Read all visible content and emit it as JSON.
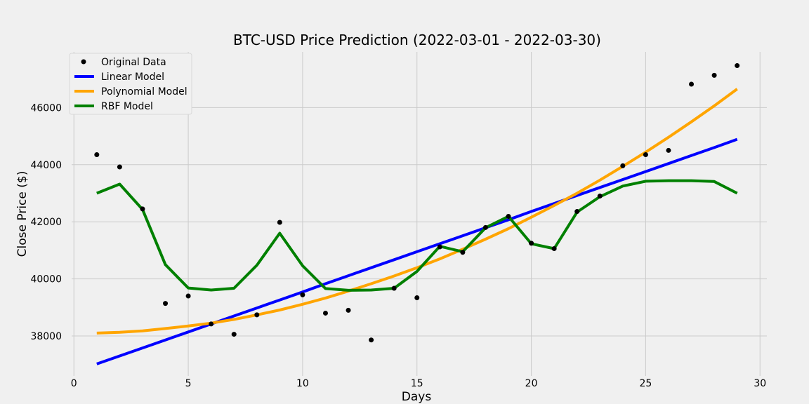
{
  "chart_data": {
    "type": "line",
    "title": "BTC-USD Price Prediction (2022-03-01 - 2022-03-30)",
    "xlabel": "Days",
    "ylabel": "Close Price ($)",
    "xlim": [
      -0.1,
      30.3
    ],
    "ylim": [
      36600,
      47950
    ],
    "xticks": [
      0,
      5,
      10,
      15,
      20,
      25,
      30
    ],
    "yticks": [
      38000,
      40000,
      42000,
      44000,
      46000
    ],
    "grid": true,
    "legend_position": "top-left",
    "x": [
      1,
      2,
      3,
      4,
      5,
      6,
      7,
      8,
      9,
      10,
      11,
      12,
      13,
      14,
      15,
      16,
      17,
      18,
      19,
      20,
      21,
      22,
      23,
      24,
      25,
      26,
      27,
      28,
      29
    ],
    "scatter": {
      "name": "Original Data",
      "color": "#000000",
      "values": [
        44350,
        43920,
        42450,
        39140,
        39400,
        38420,
        38060,
        38740,
        41980,
        39440,
        38800,
        38900,
        37860,
        39670,
        39340,
        41120,
        40930,
        41800,
        42190,
        41250,
        41060,
        42360,
        42900,
        43960,
        44350,
        44500,
        46820,
        47130,
        47470
      ]
    },
    "series": [
      {
        "name": "Linear Model",
        "color": "#0000ff",
        "values": [
          37020,
          37300,
          37580,
          37860,
          38140,
          38420,
          38700,
          38980,
          39260,
          39540,
          39830,
          40110,
          40390,
          40670,
          40950,
          41230,
          41510,
          41790,
          42070,
          42360,
          42640,
          42920,
          43200,
          43480,
          43760,
          44040,
          44320,
          44600,
          44890
        ]
      },
      {
        "name": "Polynomial Model",
        "color": "#ffa500",
        "values": [
          38100,
          38130,
          38180,
          38260,
          38350,
          38450,
          38580,
          38740,
          38910,
          39110,
          39330,
          39570,
          39830,
          40100,
          40390,
          40700,
          41040,
          41390,
          41760,
          42160,
          42570,
          43000,
          43460,
          43940,
          44440,
          44960,
          45500,
          46060,
          46650
        ]
      },
      {
        "name": "RBF Model",
        "color": "#008000",
        "values": [
          43000,
          43320,
          42430,
          40500,
          39680,
          39610,
          39670,
          40480,
          41600,
          40460,
          39660,
          39600,
          39610,
          39670,
          40260,
          41140,
          40950,
          41790,
          42190,
          41230,
          41060,
          42340,
          42880,
          43250,
          43420,
          43440,
          43440,
          43410,
          43000
        ]
      }
    ]
  }
}
